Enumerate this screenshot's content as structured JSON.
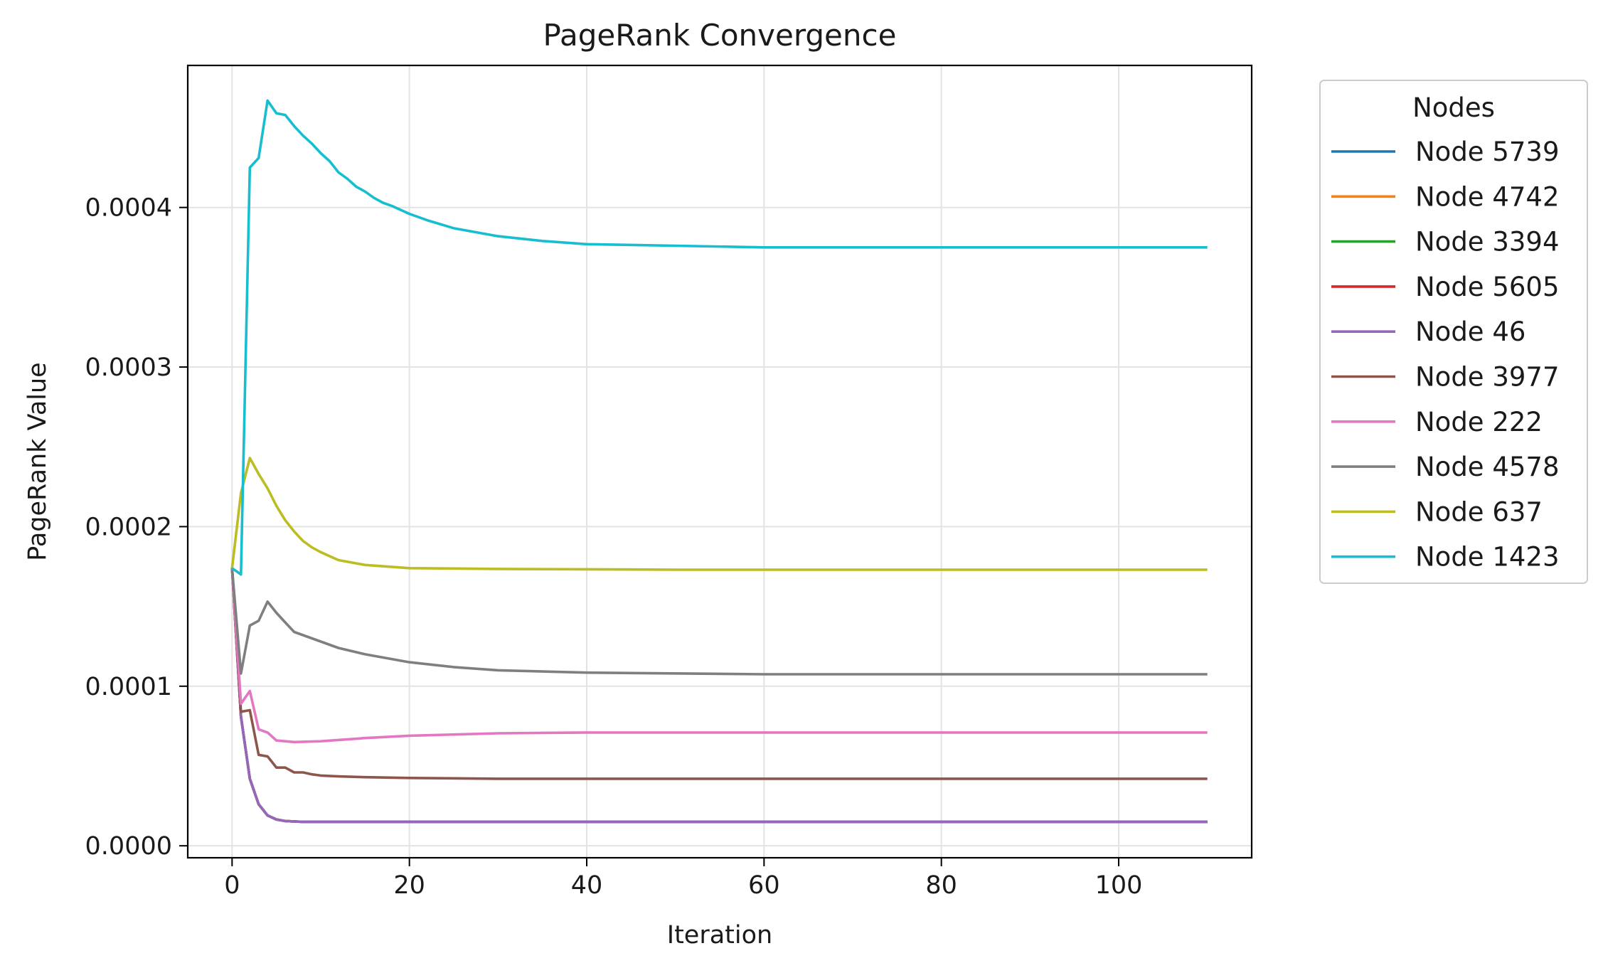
{
  "chart_data": {
    "type": "line",
    "title": "PageRank Convergence",
    "xlabel": "Iteration",
    "ylabel": "PageRank Value",
    "xlim": [
      -5,
      115
    ],
    "ylim": [
      -7.5e-06,
      0.000489
    ],
    "xticks": [
      0,
      20,
      40,
      60,
      80,
      100
    ],
    "xtick_labels": [
      "0",
      "20",
      "40",
      "60",
      "80",
      "100"
    ],
    "yticks": [
      0,
      0.0001,
      0.0002,
      0.0003,
      0.0004
    ],
    "ytick_labels": [
      "0.0000",
      "0.0001",
      "0.0002",
      "0.0003",
      "0.0004"
    ],
    "grid": true,
    "legend": {
      "title": "Nodes",
      "placement": "outside right, top"
    },
    "series": [
      {
        "name": "Node 5739",
        "color": "#1f77b4",
        "points": [
          [
            0,
            0.000174
          ],
          [
            1,
            8.1e-05
          ],
          [
            2,
            4.2e-05
          ],
          [
            3,
            2.6e-05
          ],
          [
            4,
            1.9e-05
          ],
          [
            5,
            1.65e-05
          ],
          [
            6,
            1.55e-05
          ],
          [
            8,
            1.5e-05
          ],
          [
            110,
            1.5e-05
          ]
        ]
      },
      {
        "name": "Node 4742",
        "color": "#ff7f0e",
        "points": [
          [
            0,
            0.000174
          ],
          [
            1,
            8.1e-05
          ],
          [
            2,
            4.2e-05
          ],
          [
            3,
            2.6e-05
          ],
          [
            4,
            1.9e-05
          ],
          [
            5,
            1.65e-05
          ],
          [
            6,
            1.55e-05
          ],
          [
            8,
            1.5e-05
          ],
          [
            110,
            1.5e-05
          ]
        ]
      },
      {
        "name": "Node 3394",
        "color": "#2ca02c",
        "points": [
          [
            0,
            0.000174
          ],
          [
            1,
            8.1e-05
          ],
          [
            2,
            4.2e-05
          ],
          [
            3,
            2.6e-05
          ],
          [
            4,
            1.9e-05
          ],
          [
            5,
            1.65e-05
          ],
          [
            6,
            1.55e-05
          ],
          [
            8,
            1.5e-05
          ],
          [
            110,
            1.5e-05
          ]
        ]
      },
      {
        "name": "Node 5605",
        "color": "#d62728",
        "points": [
          [
            0,
            0.000174
          ],
          [
            1,
            8.1e-05
          ],
          [
            2,
            4.2e-05
          ],
          [
            3,
            2.6e-05
          ],
          [
            4,
            1.9e-05
          ],
          [
            5,
            1.65e-05
          ],
          [
            6,
            1.55e-05
          ],
          [
            8,
            1.5e-05
          ],
          [
            110,
            1.5e-05
          ]
        ]
      },
      {
        "name": "Node 46",
        "color": "#9467bd",
        "points": [
          [
            0,
            0.000174
          ],
          [
            1,
            8.1e-05
          ],
          [
            2,
            4.2e-05
          ],
          [
            3,
            2.6e-05
          ],
          [
            4,
            1.9e-05
          ],
          [
            5,
            1.65e-05
          ],
          [
            6,
            1.55e-05
          ],
          [
            8,
            1.5e-05
          ],
          [
            110,
            1.5e-05
          ]
        ]
      },
      {
        "name": "Node 3977",
        "color": "#8c564b",
        "points": [
          [
            0,
            0.000174
          ],
          [
            1,
            8.4e-05
          ],
          [
            2,
            8.5e-05
          ],
          [
            3,
            5.7e-05
          ],
          [
            4,
            5.6e-05
          ],
          [
            5,
            4.9e-05
          ],
          [
            6,
            4.9e-05
          ],
          [
            7,
            4.6e-05
          ],
          [
            8,
            4.6e-05
          ],
          [
            9,
            4.48e-05
          ],
          [
            10,
            4.4e-05
          ],
          [
            12,
            4.35e-05
          ],
          [
            15,
            4.3e-05
          ],
          [
            20,
            4.25e-05
          ],
          [
            30,
            4.2e-05
          ],
          [
            110,
            4.2e-05
          ]
        ]
      },
      {
        "name": "Node 222",
        "color": "#e377c2",
        "points": [
          [
            0,
            0.000174
          ],
          [
            1,
            8.9e-05
          ],
          [
            2,
            9.7e-05
          ],
          [
            3,
            7.3e-05
          ],
          [
            4,
            7.1e-05
          ],
          [
            5,
            6.6e-05
          ],
          [
            6,
            6.55e-05
          ],
          [
            7,
            6.5e-05
          ],
          [
            10,
            6.55e-05
          ],
          [
            15,
            6.75e-05
          ],
          [
            20,
            6.9e-05
          ],
          [
            30,
            7.05e-05
          ],
          [
            40,
            7.1e-05
          ],
          [
            110,
            7.1e-05
          ]
        ]
      },
      {
        "name": "Node 4578",
        "color": "#7f7f7f",
        "points": [
          [
            0,
            0.000174
          ],
          [
            1,
            0.000108
          ],
          [
            2,
            0.000138
          ],
          [
            3,
            0.000141
          ],
          [
            4,
            0.000153
          ],
          [
            5,
            0.000146
          ],
          [
            6,
            0.00014
          ],
          [
            7,
            0.000134
          ],
          [
            8,
            0.000132
          ],
          [
            9,
            0.00013
          ],
          [
            10,
            0.000128
          ],
          [
            12,
            0.000124
          ],
          [
            15,
            0.00012
          ],
          [
            20,
            0.000115
          ],
          [
            25,
            0.000112
          ],
          [
            30,
            0.00011
          ],
          [
            40,
            0.0001085
          ],
          [
            60,
            0.0001075
          ],
          [
            110,
            0.0001075
          ]
        ]
      },
      {
        "name": "Node 637",
        "color": "#bcbd22",
        "points": [
          [
            0,
            0.000174
          ],
          [
            1,
            0.000221
          ],
          [
            2,
            0.000243
          ],
          [
            3,
            0.000233
          ],
          [
            4,
            0.000224
          ],
          [
            5,
            0.000213
          ],
          [
            6,
            0.000204
          ],
          [
            7,
            0.000197
          ],
          [
            8,
            0.000191
          ],
          [
            9,
            0.000187
          ],
          [
            10,
            0.000184
          ],
          [
            12,
            0.000179
          ],
          [
            15,
            0.000176
          ],
          [
            20,
            0.000174
          ],
          [
            30,
            0.0001735
          ],
          [
            50,
            0.000173
          ],
          [
            110,
            0.000173
          ]
        ]
      },
      {
        "name": "Node 1423",
        "color": "#17becf",
        "points": [
          [
            0,
            0.000174
          ],
          [
            1,
            0.00017
          ],
          [
            2,
            0.000425
          ],
          [
            3,
            0.000431
          ],
          [
            4,
            0.000467
          ],
          [
            5,
            0.000459
          ],
          [
            6,
            0.000458
          ],
          [
            7,
            0.000451
          ],
          [
            8,
            0.000445
          ],
          [
            9,
            0.00044
          ],
          [
            10,
            0.000434
          ],
          [
            11,
            0.000429
          ],
          [
            12,
            0.000422
          ],
          [
            13,
            0.000418
          ],
          [
            14,
            0.000413
          ],
          [
            15,
            0.00041
          ],
          [
            16,
            0.000406
          ],
          [
            17,
            0.000403
          ],
          [
            18,
            0.000401
          ],
          [
            20,
            0.000396
          ],
          [
            22,
            0.000392
          ],
          [
            25,
            0.000387
          ],
          [
            30,
            0.000382
          ],
          [
            35,
            0.000379
          ],
          [
            40,
            0.000377
          ],
          [
            50,
            0.000376
          ],
          [
            60,
            0.000375
          ],
          [
            110,
            0.000375
          ]
        ]
      }
    ]
  }
}
